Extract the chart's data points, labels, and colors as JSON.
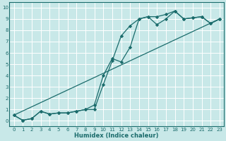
{
  "xlabel": "Humidex (Indice chaleur)",
  "bg_color": "#c8e8e8",
  "grid_color": "#ffffff",
  "line_color": "#1a6b6b",
  "xlim": [
    -0.5,
    23.5
  ],
  "ylim": [
    -0.5,
    10.5
  ],
  "xticks": [
    0,
    1,
    2,
    3,
    4,
    5,
    6,
    7,
    8,
    9,
    10,
    11,
    12,
    13,
    14,
    15,
    16,
    17,
    18,
    19,
    20,
    21,
    22,
    23
  ],
  "yticks": [
    0,
    1,
    2,
    3,
    4,
    5,
    6,
    7,
    8,
    9,
    10
  ],
  "line1_x": [
    0,
    1,
    2,
    3,
    4,
    5,
    6,
    7,
    8,
    9,
    10,
    11,
    12,
    13,
    14,
    15,
    16,
    17,
    18,
    19,
    20,
    21,
    22,
    23
  ],
  "line1_y": [
    0.5,
    0.05,
    0.2,
    0.85,
    0.6,
    0.7,
    0.7,
    0.85,
    1.0,
    1.0,
    3.2,
    5.3,
    7.5,
    8.4,
    9.0,
    9.2,
    9.2,
    9.4,
    9.7,
    9.0,
    9.1,
    9.2,
    8.6,
    9.0
  ],
  "line2_x": [
    0,
    1,
    2,
    3,
    4,
    5,
    6,
    7,
    8,
    9,
    10,
    11,
    12,
    13,
    14,
    15,
    16,
    17,
    18,
    19,
    20,
    21,
    22,
    23
  ],
  "line2_y": [
    0.5,
    0.05,
    0.2,
    0.85,
    0.6,
    0.7,
    0.7,
    0.85,
    1.0,
    1.4,
    4.0,
    5.5,
    5.2,
    6.5,
    9.0,
    9.2,
    8.5,
    9.0,
    9.7,
    9.0,
    9.1,
    9.2,
    8.6,
    9.0
  ],
  "line3_x": [
    0,
    23
  ],
  "line3_y": [
    0.5,
    9.0
  ],
  "marker": "D",
  "markersize": 2.2,
  "linewidth": 0.9,
  "tick_fontsize": 5.0,
  "xlabel_fontsize": 6.0
}
